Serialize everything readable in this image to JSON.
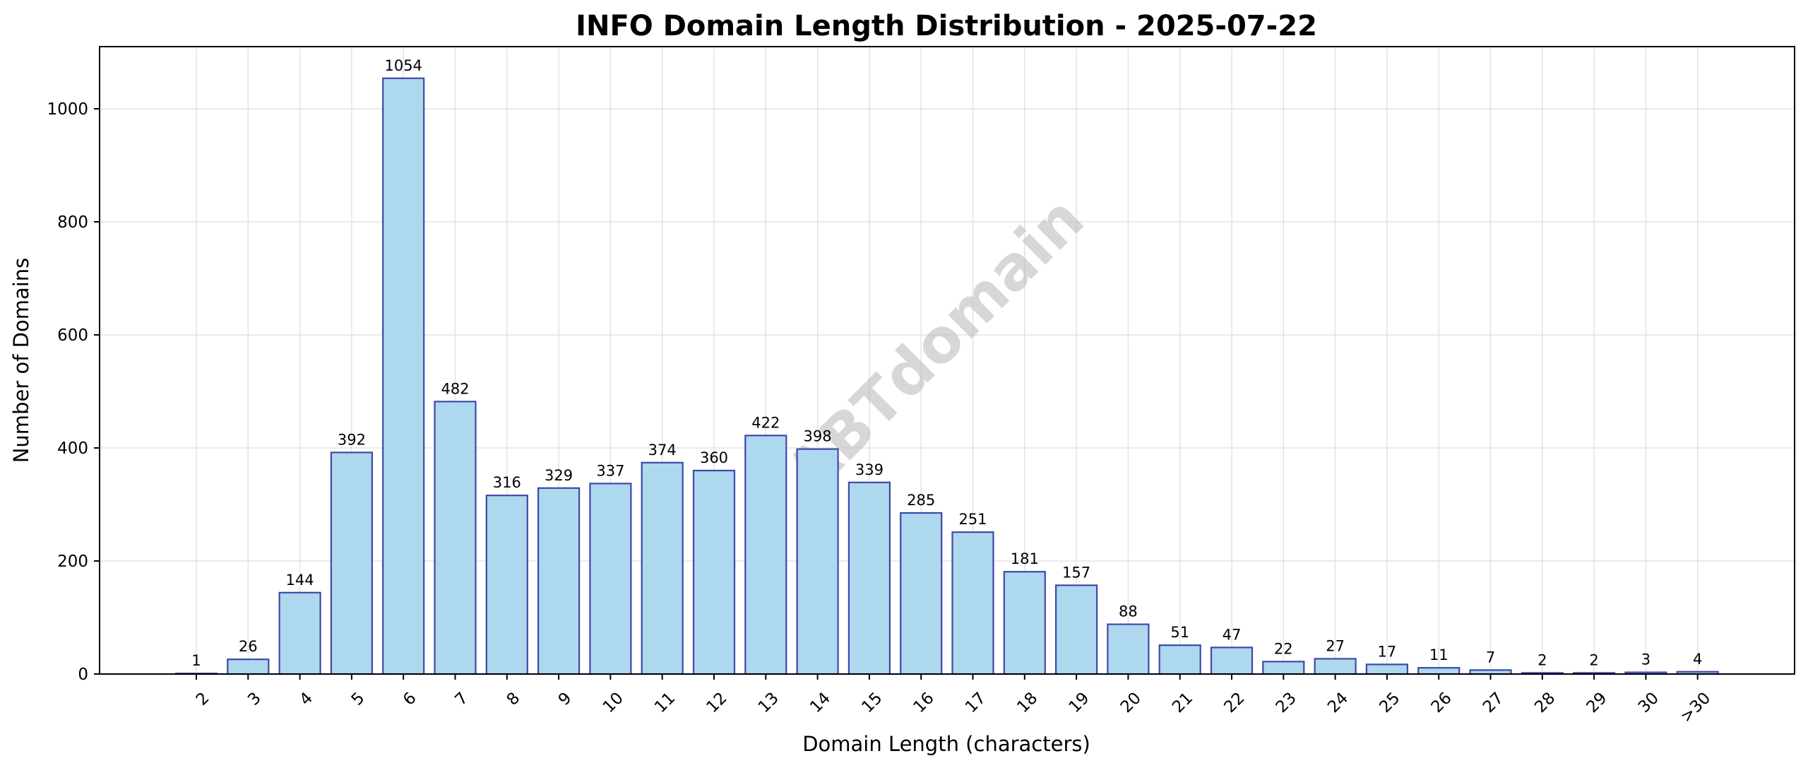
{
  "chart_data": {
    "type": "bar",
    "title": "INFO Domain Length Distribution - 2025-07-22",
    "xlabel": "Domain Length (characters)",
    "ylabel": "Number of Domains",
    "categories": [
      "2",
      "3",
      "4",
      "5",
      "6",
      "7",
      "8",
      "9",
      "10",
      "11",
      "12",
      "13",
      "14",
      "15",
      "16",
      "17",
      "18",
      "19",
      "20",
      "21",
      "22",
      "23",
      "24",
      "25",
      "26",
      "27",
      "28",
      "29",
      "30",
      ">30"
    ],
    "values": [
      1,
      26,
      144,
      392,
      1054,
      482,
      316,
      329,
      337,
      374,
      360,
      422,
      398,
      339,
      285,
      251,
      181,
      157,
      88,
      51,
      47,
      22,
      27,
      17,
      11,
      7,
      2,
      2,
      3,
      4
    ],
    "ylim": [
      0,
      1110
    ],
    "yticks": [
      0,
      200,
      400,
      600,
      800,
      1000
    ],
    "grid": true,
    "bar_color": "#add8ee",
    "bar_edge_color": "#3f48a8",
    "watermark": "ABTdomain"
  }
}
